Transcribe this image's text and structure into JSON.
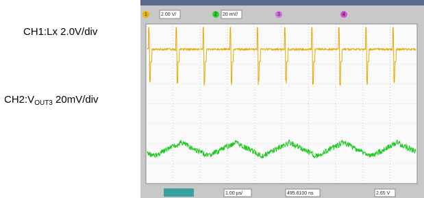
{
  "labels": {
    "ch1": "CH1:Lx 2.0V/div",
    "ch2_prefix": "CH2:V",
    "ch2_sub": "OUT3",
    "ch2_suffix": " 20mV/div"
  },
  "toolbar": {
    "ch1": "1",
    "ch1_scale": "2.00 V/",
    "ch2": "2",
    "ch2_scale": "20 mV/",
    "ch3": "3",
    "ch4": "4"
  },
  "status": {
    "timebase": "1.00 µs/",
    "delay": "495.6100 ns",
    "trigger": "2.65 V"
  }
}
